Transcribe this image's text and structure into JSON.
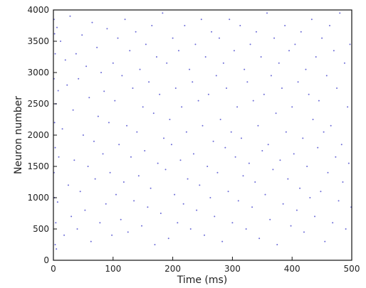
{
  "chart_data": {
    "type": "scatter",
    "title": "",
    "xlabel": "Time (ms)",
    "ylabel": "Neuron number",
    "xlim": [
      0,
      500
    ],
    "ylim": [
      0,
      4000
    ],
    "x_ticks": [
      0,
      100,
      200,
      300,
      400,
      500
    ],
    "y_ticks": [
      0,
      500,
      1000,
      1500,
      2000,
      2500,
      3000,
      3500,
      4000
    ],
    "x_tick_labels": [
      "0",
      "100",
      "200",
      "300",
      "400",
      "500"
    ],
    "y_tick_labels": [
      "0",
      "500",
      "1000",
      "1500",
      "2000",
      "2500",
      "3000",
      "3500",
      "4000"
    ],
    "grid": false,
    "marker_color": "#3a3ac8",
    "series": [
      {
        "values": [
          [
            1,
            3850
          ],
          [
            2,
            3620
          ],
          [
            3,
            3300
          ],
          [
            1,
            2900
          ],
          [
            4,
            2500
          ],
          [
            2,
            2200
          ],
          [
            3,
            1800
          ],
          [
            1,
            1400
          ],
          [
            2,
            1000
          ],
          [
            4,
            600
          ],
          [
            3,
            250
          ],
          [
            6,
            3720
          ],
          [
            8,
            2710
          ],
          [
            9,
            1650
          ],
          [
            7,
            930
          ],
          [
            5,
            180
          ],
          [
            12,
            3500
          ],
          [
            15,
            2100
          ],
          [
            18,
            400
          ],
          [
            20,
            3200
          ],
          [
            23,
            2800
          ],
          [
            25,
            1200
          ],
          [
            28,
            3900
          ],
          [
            30,
            700
          ],
          [
            33,
            2400
          ],
          [
            35,
            1600
          ],
          [
            38,
            3300
          ],
          [
            40,
            500
          ],
          [
            42,
            2900
          ],
          [
            45,
            1100
          ],
          [
            48,
            3600
          ],
          [
            50,
            2000
          ],
          [
            53,
            800
          ],
          [
            55,
            3100
          ],
          [
            58,
            1500
          ],
          [
            60,
            2600
          ],
          [
            63,
            300
          ],
          [
            65,
            3800
          ],
          [
            68,
            1900
          ],
          [
            70,
            1300
          ],
          [
            73,
            3400
          ],
          [
            75,
            2300
          ],
          [
            78,
            600
          ],
          [
            80,
            3000
          ],
          [
            83,
            1700
          ],
          [
            85,
            2700
          ],
          [
            88,
            900
          ],
          [
            90,
            3700
          ],
          [
            93,
            2200
          ],
          [
            95,
            1400
          ],
          [
            98,
            400
          ],
          [
            100,
            3150
          ],
          [
            103,
            2550
          ],
          [
            105,
            1050
          ],
          [
            108,
            3550
          ],
          [
            110,
            1850
          ],
          [
            113,
            650
          ],
          [
            115,
            2950
          ],
          [
            118,
            1250
          ],
          [
            120,
            3850
          ],
          [
            123,
            2150
          ],
          [
            125,
            450
          ],
          [
            128,
            3350
          ],
          [
            130,
            1650
          ],
          [
            133,
            2750
          ],
          [
            135,
            950
          ],
          [
            138,
            3650
          ],
          [
            140,
            2050
          ],
          [
            143,
            1350
          ],
          [
            145,
            3050
          ],
          [
            148,
            550
          ],
          [
            150,
            2450
          ],
          [
            153,
            1750
          ],
          [
            155,
            3450
          ],
          [
            158,
            850
          ],
          [
            160,
            2850
          ],
          [
            163,
            1150
          ],
          [
            165,
            3750
          ],
          [
            168,
            2350
          ],
          [
            170,
            250
          ],
          [
            173,
            3250
          ],
          [
            175,
            1550
          ],
          [
            178,
            2650
          ],
          [
            180,
            750
          ],
          [
            183,
            3950
          ],
          [
            185,
            1950
          ],
          [
            188,
            1450
          ],
          [
            190,
            3150
          ],
          [
            193,
            350
          ],
          [
            195,
            2250
          ],
          [
            198,
            1850
          ],
          [
            200,
            3550
          ],
          [
            203,
            1050
          ],
          [
            205,
            2750
          ],
          [
            208,
            600
          ],
          [
            210,
            3350
          ],
          [
            213,
            1600
          ],
          [
            215,
            2450
          ],
          [
            218,
            900
          ],
          [
            220,
            3750
          ],
          [
            223,
            2050
          ],
          [
            225,
            1300
          ],
          [
            228,
            3050
          ],
          [
            230,
            500
          ],
          [
            233,
            2850
          ],
          [
            235,
            1700
          ],
          [
            238,
            3450
          ],
          [
            240,
            800
          ],
          [
            243,
            2550
          ],
          [
            245,
            1200
          ],
          [
            248,
            3850
          ],
          [
            250,
            2150
          ],
          [
            253,
            400
          ],
          [
            255,
            3250
          ],
          [
            258,
            1500
          ],
          [
            260,
            2650
          ],
          [
            263,
            1000
          ],
          [
            265,
            3650
          ],
          [
            268,
            1900
          ],
          [
            270,
            700
          ],
          [
            273,
            2950
          ],
          [
            275,
            1400
          ],
          [
            278,
            3550
          ],
          [
            280,
            2250
          ],
          [
            283,
            300
          ],
          [
            285,
            3150
          ],
          [
            288,
            1800
          ],
          [
            290,
            2750
          ],
          [
            293,
            1100
          ],
          [
            295,
            3850
          ],
          [
            298,
            2050
          ],
          [
            300,
            600
          ],
          [
            303,
            3350
          ],
          [
            305,
            1650
          ],
          [
            308,
            2450
          ],
          [
            310,
            950
          ],
          [
            313,
            3750
          ],
          [
            315,
            1950
          ],
          [
            318,
            1350
          ],
          [
            320,
            3050
          ],
          [
            323,
            500
          ],
          [
            325,
            2850
          ],
          [
            328,
            1550
          ],
          [
            330,
            3450
          ],
          [
            333,
            850
          ],
          [
            335,
            2550
          ],
          [
            338,
            1250
          ],
          [
            340,
            3650
          ],
          [
            343,
            2150
          ],
          [
            345,
            350
          ],
          [
            348,
            3250
          ],
          [
            350,
            1750
          ],
          [
            353,
            2650
          ],
          [
            355,
            1050
          ],
          [
            358,
            3950
          ],
          [
            360,
            1850
          ],
          [
            363,
            650
          ],
          [
            365,
            2950
          ],
          [
            368,
            1450
          ],
          [
            370,
            3550
          ],
          [
            373,
            2350
          ],
          [
            375,
            250
          ],
          [
            378,
            3150
          ],
          [
            380,
            1600
          ],
          [
            383,
            2750
          ],
          [
            385,
            900
          ],
          [
            388,
            3750
          ],
          [
            390,
            2050
          ],
          [
            393,
            1300
          ],
          [
            395,
            3350
          ],
          [
            398,
            550
          ],
          [
            400,
            2450
          ],
          [
            403,
            1700
          ],
          [
            405,
            3450
          ],
          [
            408,
            800
          ],
          [
            410,
            2850
          ],
          [
            413,
            1150
          ],
          [
            415,
            3650
          ],
          [
            418,
            1950
          ],
          [
            420,
            450
          ],
          [
            423,
            3050
          ],
          [
            425,
            1500
          ],
          [
            428,
            2650
          ],
          [
            430,
            1000
          ],
          [
            433,
            3850
          ],
          [
            435,
            2250
          ],
          [
            438,
            700
          ],
          [
            440,
            3250
          ],
          [
            443,
            1800
          ],
          [
            445,
            2550
          ],
          [
            448,
            1100
          ],
          [
            450,
            3550
          ],
          [
            453,
            2050
          ],
          [
            455,
            300
          ],
          [
            458,
            2950
          ],
          [
            460,
            1400
          ],
          [
            463,
            3750
          ],
          [
            465,
            2150
          ],
          [
            468,
            600
          ],
          [
            470,
            3350
          ],
          [
            473,
            1650
          ],
          [
            475,
            2750
          ],
          [
            478,
            950
          ],
          [
            480,
            3950
          ],
          [
            483,
            1850
          ],
          [
            485,
            1250
          ],
          [
            488,
            3150
          ],
          [
            490,
            500
          ],
          [
            493,
            2450
          ],
          [
            495,
            1550
          ],
          [
            497,
            3450
          ],
          [
            499,
            850
          ]
        ]
      }
    ]
  }
}
